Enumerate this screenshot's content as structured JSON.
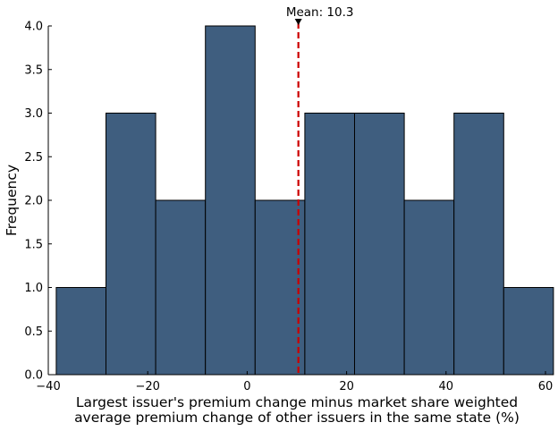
{
  "chart_data": {
    "type": "histogram",
    "title": "",
    "xlabel_lines": [
      "Largest issuer's premium change minus market share weighted",
      "average premium change of other issuers in the same state (%)"
    ],
    "ylabel": "Frequency",
    "xlim": [
      -40,
      60
    ],
    "ylim": [
      0,
      4
    ],
    "xticks": [
      -40,
      -20,
      0,
      20,
      40,
      60
    ],
    "xtick_labels": [
      "−40",
      "−20",
      "0",
      "20",
      "40",
      "60"
    ],
    "yticks": [
      0,
      0.5,
      1,
      1.5,
      2,
      2.5,
      3,
      3.5,
      4
    ],
    "ytick_labels": [
      "0.0",
      "0.5",
      "1.0",
      "1.5",
      "2.0",
      "2.5",
      "3.0",
      "3.5",
      "4.0"
    ],
    "bins": [
      {
        "start": -38.4,
        "end": -28.4,
        "count": 1
      },
      {
        "start": -28.4,
        "end": -18.4,
        "count": 3
      },
      {
        "start": -18.4,
        "end": -8.4,
        "count": 2
      },
      {
        "start": -8.4,
        "end": 1.6,
        "count": 4
      },
      {
        "start": 1.6,
        "end": 11.6,
        "count": 2
      },
      {
        "start": 11.6,
        "end": 21.6,
        "count": 3
      },
      {
        "start": 21.6,
        "end": 31.6,
        "count": 3
      },
      {
        "start": 31.6,
        "end": 41.6,
        "count": 2
      },
      {
        "start": 41.6,
        "end": 51.6,
        "count": 3
      },
      {
        "start": 51.6,
        "end": 61.6,
        "count": 1
      }
    ],
    "mean": 10.3,
    "mean_label": "Mean: 10.3",
    "grid": false,
    "colors": {
      "bar_fill": "#3f5e7f",
      "bar_edge": "#000000",
      "mean_line": "#cc0000",
      "axis": "#000000"
    }
  }
}
